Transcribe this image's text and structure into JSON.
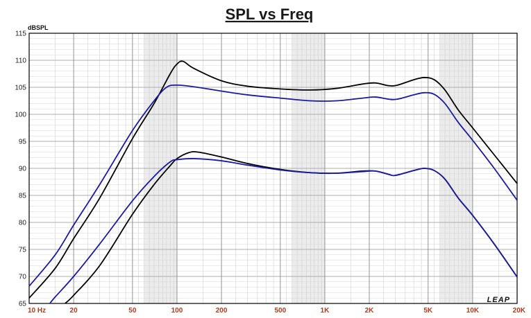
{
  "chart_data": {
    "type": "line",
    "title": "SPL vs Freq",
    "ylabel": "dBSPL",
    "xlabel": "",
    "x_scale": "log",
    "xlim": [
      10,
      20000
    ],
    "ylim": [
      65,
      115
    ],
    "grid": true,
    "y_ticks": [
      65,
      70,
      75,
      80,
      85,
      90,
      95,
      100,
      105,
      110,
      115
    ],
    "x_ticks": [
      {
        "value": 10,
        "label": "10  Hz"
      },
      {
        "value": 20,
        "label": "20"
      },
      {
        "value": 50,
        "label": "50"
      },
      {
        "value": 100,
        "label": "100"
      },
      {
        "value": 200,
        "label": "200"
      },
      {
        "value": 500,
        "label": "500"
      },
      {
        "value": 1000,
        "label": "1K"
      },
      {
        "value": 2000,
        "label": "2K"
      },
      {
        "value": 5000,
        "label": "5K"
      },
      {
        "value": 10000,
        "label": "10K"
      },
      {
        "value": 20000,
        "label": "20K"
      }
    ],
    "brand": "LEAP",
    "series": [
      {
        "color": "#000000",
        "points": [
          [
            10,
            66
          ],
          [
            15,
            71.5
          ],
          [
            20,
            77
          ],
          [
            30,
            84.5
          ],
          [
            50,
            95.5
          ],
          [
            70,
            102
          ],
          [
            90,
            107.5
          ],
          [
            100,
            109.3
          ],
          [
            110,
            109.8
          ],
          [
            130,
            108.5
          ],
          [
            200,
            106.2
          ],
          [
            300,
            105.2
          ],
          [
            500,
            104.7
          ],
          [
            800,
            104.5
          ],
          [
            1200,
            104.8
          ],
          [
            1800,
            105.6
          ],
          [
            2200,
            105.8
          ],
          [
            2700,
            105.3
          ],
          [
            3100,
            105.4
          ],
          [
            4000,
            106.4
          ],
          [
            4700,
            106.8
          ],
          [
            5500,
            106.4
          ],
          [
            6500,
            104.5
          ],
          [
            8000,
            100.8
          ],
          [
            10000,
            97.5
          ],
          [
            14000,
            92.5
          ],
          [
            20000,
            87.2
          ]
        ]
      },
      {
        "color": "#1a1aa0",
        "points": [
          [
            10,
            68.2
          ],
          [
            15,
            74
          ],
          [
            20,
            79.5
          ],
          [
            30,
            87
          ],
          [
            50,
            97
          ],
          [
            70,
            102.5
          ],
          [
            85,
            105
          ],
          [
            100,
            105.4
          ],
          [
            130,
            105.1
          ],
          [
            200,
            104.3
          ],
          [
            300,
            103.6
          ],
          [
            500,
            103
          ],
          [
            800,
            102.5
          ],
          [
            1200,
            102.5
          ],
          [
            1800,
            103
          ],
          [
            2200,
            103.2
          ],
          [
            2700,
            102.8
          ],
          [
            3100,
            102.8
          ],
          [
            4000,
            103.6
          ],
          [
            4700,
            104
          ],
          [
            5500,
            103.7
          ],
          [
            6500,
            102
          ],
          [
            8000,
            98.5
          ],
          [
            10000,
            95.2
          ],
          [
            14000,
            90
          ],
          [
            20000,
            84.1
          ]
        ]
      },
      {
        "color": "#000000",
        "points": [
          [
            17.5,
            65
          ],
          [
            20,
            66.5
          ],
          [
            30,
            72
          ],
          [
            50,
            81.5
          ],
          [
            70,
            87
          ],
          [
            90,
            90.5
          ],
          [
            100,
            91.8
          ],
          [
            120,
            92.9
          ],
          [
            140,
            93
          ],
          [
            200,
            92.1
          ],
          [
            300,
            90.9
          ],
          [
            500,
            89.8
          ],
          [
            800,
            89.2
          ],
          [
            1200,
            89.1
          ],
          [
            1800,
            89.5
          ],
          [
            2200,
            89.5
          ],
          [
            2700,
            88.9
          ],
          [
            3000,
            88.7
          ],
          [
            4000,
            89.6
          ],
          [
            4700,
            90
          ],
          [
            5500,
            89.6
          ],
          [
            6500,
            88
          ],
          [
            8000,
            84.5
          ],
          [
            10000,
            81.3
          ],
          [
            14000,
            76
          ],
          [
            20000,
            69.9
          ]
        ]
      },
      {
        "color": "#1a1aa0",
        "points": [
          [
            13.8,
            65
          ],
          [
            15,
            66.2
          ],
          [
            20,
            70
          ],
          [
            30,
            76
          ],
          [
            50,
            84
          ],
          [
            70,
            88.5
          ],
          [
            90,
            91.2
          ],
          [
            100,
            91.6
          ],
          [
            130,
            91.8
          ],
          [
            200,
            91.4
          ],
          [
            300,
            90.6
          ],
          [
            500,
            89.7
          ],
          [
            800,
            89.2
          ],
          [
            1200,
            89.1
          ],
          [
            1800,
            89.4
          ],
          [
            2200,
            89.5
          ],
          [
            2700,
            88.9
          ],
          [
            3000,
            88.7
          ],
          [
            4000,
            89.6
          ],
          [
            4700,
            90
          ],
          [
            5500,
            89.6
          ],
          [
            6500,
            88
          ],
          [
            8000,
            84.5
          ],
          [
            10000,
            81.3
          ],
          [
            14000,
            76
          ],
          [
            20000,
            69.9
          ]
        ]
      }
    ]
  }
}
